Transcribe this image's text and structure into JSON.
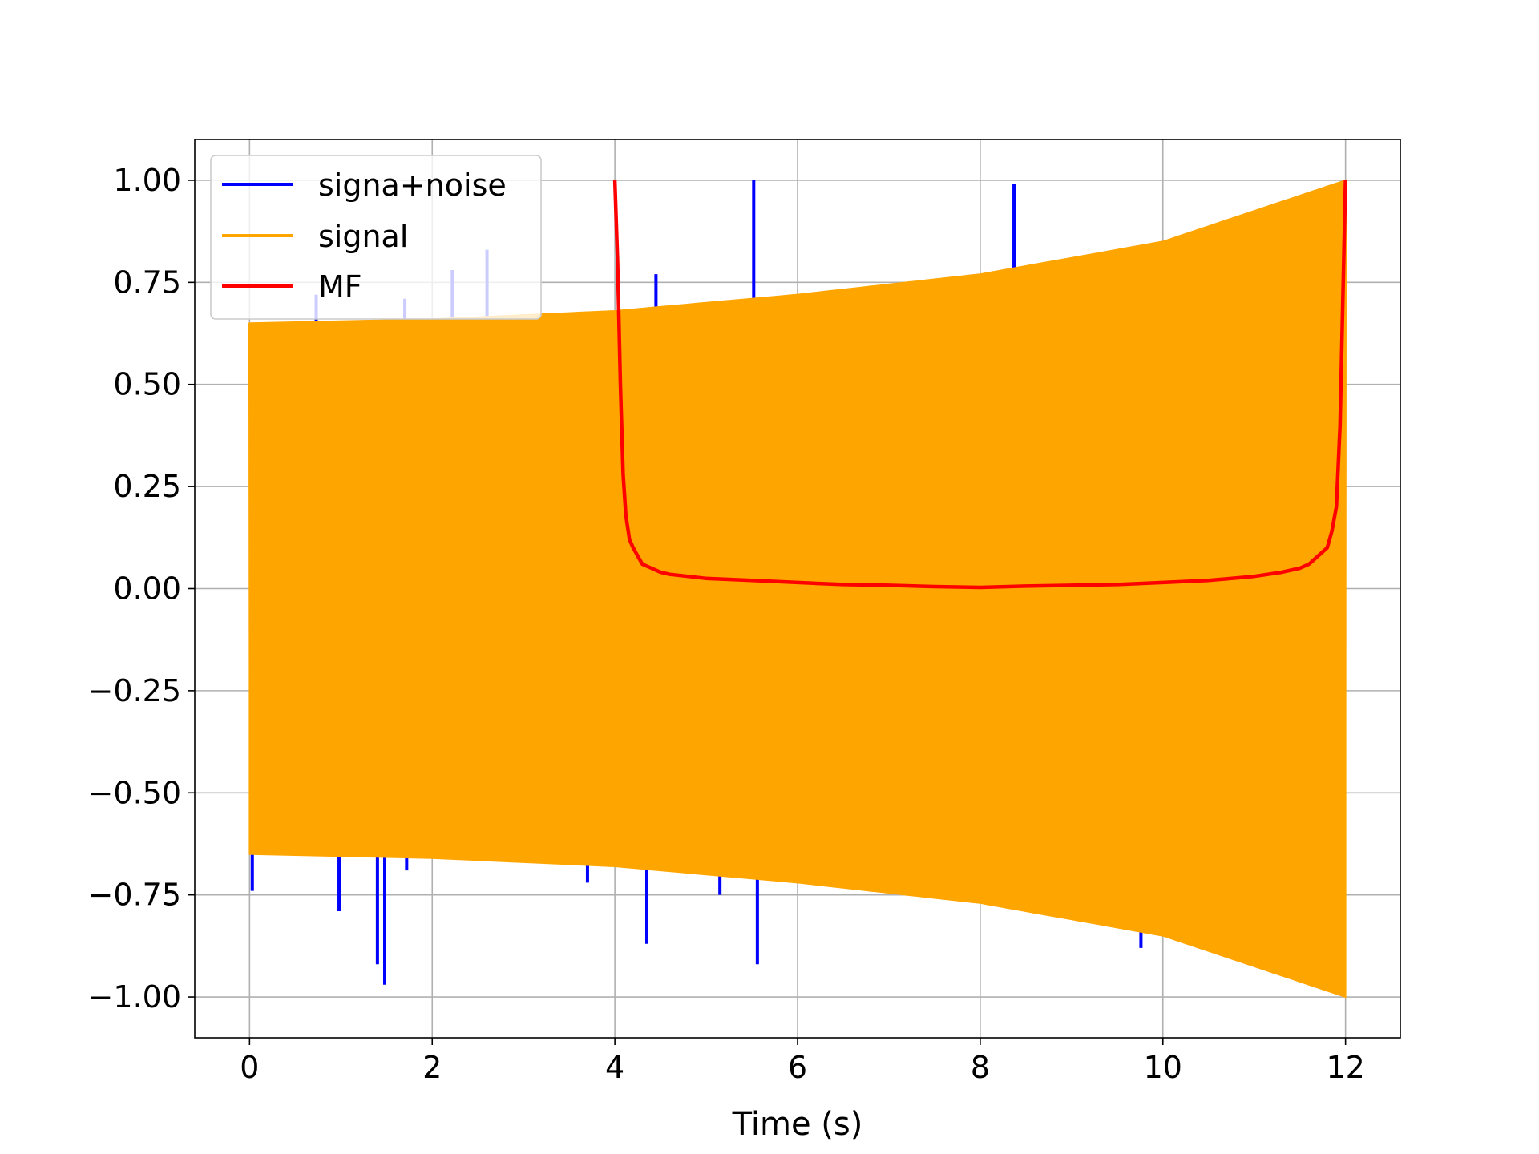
{
  "chart_data": {
    "type": "line",
    "title": "",
    "xlabel": "Time (s)",
    "ylabel": "",
    "xlim": [
      -0.6,
      12.6
    ],
    "ylim": [
      -1.1,
      1.1
    ],
    "xticks": [
      0,
      2,
      4,
      6,
      8,
      10,
      12
    ],
    "xtick_labels": [
      "0",
      "2",
      "4",
      "6",
      "8",
      "10",
      "12"
    ],
    "yticks": [
      1.0,
      0.75,
      0.5,
      0.25,
      0.0,
      -0.25,
      -0.5,
      -0.75,
      -1.0
    ],
    "ytick_labels": [
      "1.00",
      "0.75",
      "0.50",
      "0.25",
      "0.00",
      "−0.25",
      "−0.50",
      "−0.75",
      "−1.00"
    ],
    "grid": true,
    "legend_position": "top-left",
    "series": [
      {
        "name": "signa+noise",
        "color": "#0000ff",
        "envelope": {
          "x": [
            0,
            2,
            4,
            6,
            8,
            10,
            12
          ],
          "upper": [
            0.65,
            0.66,
            0.68,
            0.72,
            0.77,
            0.85,
            1.0
          ],
          "lower": [
            -0.65,
            -0.66,
            -0.68,
            -0.72,
            -0.77,
            -0.85,
            -1.0
          ]
        },
        "spikes": [
          {
            "x": 0.03,
            "y": -0.74
          },
          {
            "x": 0.73,
            "y": 0.72
          },
          {
            "x": 0.98,
            "y": -0.79
          },
          {
            "x": 1.4,
            "y": -0.92
          },
          {
            "x": 1.48,
            "y": -0.97
          },
          {
            "x": 1.7,
            "y": 0.71
          },
          {
            "x": 1.72,
            "y": -0.69
          },
          {
            "x": 2.22,
            "y": 0.78
          },
          {
            "x": 2.6,
            "y": 0.83
          },
          {
            "x": 3.7,
            "y": -0.72
          },
          {
            "x": 4.35,
            "y": -0.87
          },
          {
            "x": 4.45,
            "y": 0.77
          },
          {
            "x": 5.15,
            "y": -0.75
          },
          {
            "x": 5.52,
            "y": 1.0
          },
          {
            "x": 5.56,
            "y": -0.92
          },
          {
            "x": 8.37,
            "y": 0.99
          },
          {
            "x": 9.76,
            "y": -0.88
          }
        ]
      },
      {
        "name": "signal",
        "color": "#ffa500",
        "envelope": {
          "x": [
            0,
            2,
            4,
            6,
            8,
            10,
            12
          ],
          "upper": [
            0.65,
            0.66,
            0.68,
            0.72,
            0.77,
            0.85,
            1.0
          ],
          "lower": [
            -0.65,
            -0.66,
            -0.68,
            -0.72,
            -0.77,
            -0.85,
            -1.0
          ]
        }
      },
      {
        "name": "MF",
        "color": "#ff0000",
        "x": [
          4.0,
          4.03,
          4.06,
          4.09,
          4.12,
          4.16,
          4.2,
          4.25,
          4.3,
          4.4,
          4.5,
          4.6,
          4.8,
          5.0,
          5.5,
          6.0,
          6.5,
          7.0,
          7.5,
          8.0,
          8.5,
          9.0,
          9.5,
          10.0,
          10.5,
          11.0,
          11.3,
          11.5,
          11.6,
          11.7,
          11.8,
          11.85,
          11.9,
          11.94,
          11.97,
          12.0
        ],
        "values": [
          1.0,
          0.8,
          0.5,
          0.28,
          0.18,
          0.12,
          0.1,
          0.08,
          0.06,
          0.05,
          0.04,
          0.035,
          0.03,
          0.025,
          0.02,
          0.015,
          0.01,
          0.008,
          0.005,
          0.003,
          0.006,
          0.008,
          0.01,
          0.015,
          0.02,
          0.03,
          0.04,
          0.05,
          0.06,
          0.08,
          0.1,
          0.14,
          0.2,
          0.4,
          0.7,
          1.0
        ]
      }
    ]
  }
}
